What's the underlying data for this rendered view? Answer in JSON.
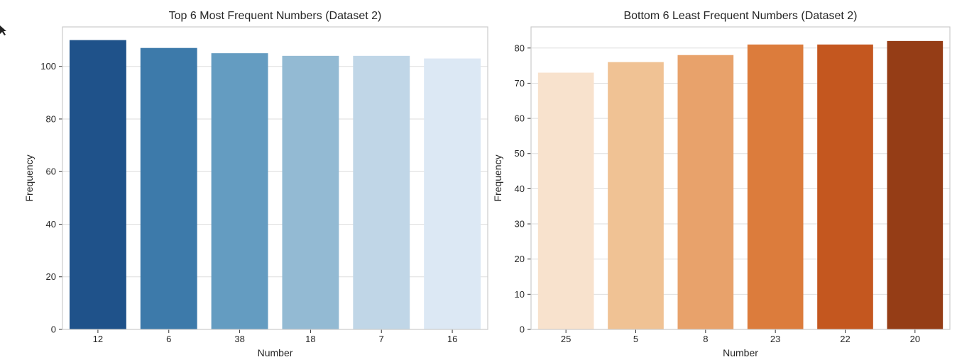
{
  "chart_data": [
    {
      "type": "bar",
      "title": "Top 6 Most Frequent Numbers (Dataset 2)",
      "xlabel": "Number",
      "ylabel": "Frequency",
      "categories": [
        "12",
        "6",
        "38",
        "18",
        "7",
        "16"
      ],
      "values": [
        110,
        107,
        105,
        104,
        104,
        103
      ],
      "colors": [
        "#1f528a",
        "#3d7aaa",
        "#649cc1",
        "#93bad3",
        "#c0d6e7",
        "#dce8f4"
      ],
      "ylim": [
        0,
        115
      ],
      "yticks": [
        0,
        20,
        40,
        60,
        80,
        100
      ],
      "grid": true
    },
    {
      "type": "bar",
      "title": "Bottom 6 Least Frequent Numbers (Dataset 2)",
      "xlabel": "Number",
      "ylabel": "Frequency",
      "categories": [
        "25",
        "5",
        "8",
        "23",
        "22",
        "20"
      ],
      "values": [
        73,
        76,
        78,
        81,
        81,
        82
      ],
      "colors": [
        "#f8e2cd",
        "#f0c294",
        "#e8a26b",
        "#dc7c3c",
        "#c4571f",
        "#953d16"
      ],
      "ylim": [
        0,
        86
      ],
      "yticks": [
        0,
        10,
        20,
        30,
        40,
        50,
        60,
        70,
        80
      ],
      "grid": true
    }
  ]
}
